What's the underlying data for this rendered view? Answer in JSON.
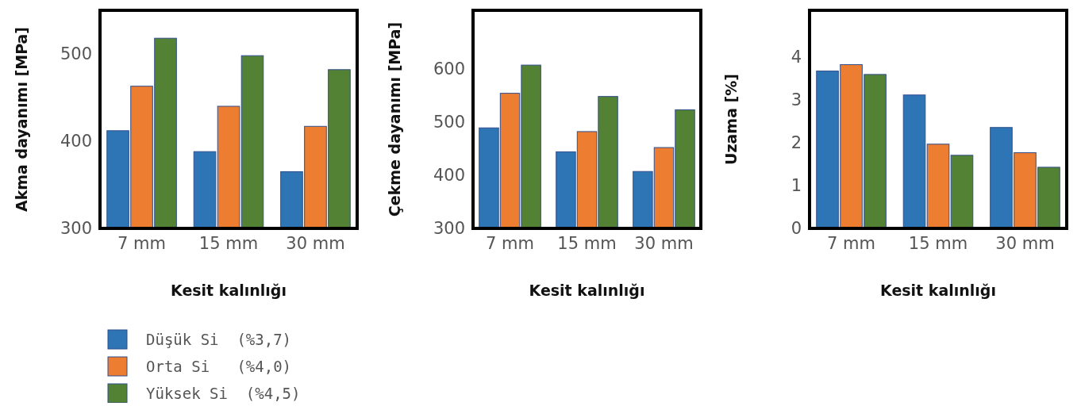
{
  "chart_data": [
    {
      "type": "bar",
      "xlabel": "Kesit kalınlığı",
      "ylabel": "Akma dayanımı [MPa]",
      "categories": [
        "7 mm",
        "15 mm",
        "30 mm"
      ],
      "ylim": [
        300,
        550
      ],
      "yticks": [
        300,
        400,
        500
      ],
      "legend": "bottom",
      "series": [
        {
          "name": "Düşük Si  (%3,7)",
          "color": "#2e75b6",
          "values": [
            412,
            388,
            365
          ]
        },
        {
          "name": "Orta Si   (%4,0)",
          "color": "#ed7d31",
          "values": [
            463,
            440,
            417
          ]
        },
        {
          "name": "Yüksek Si  (%4,5)",
          "color": "#548235",
          "values": [
            518,
            498,
            482
          ]
        }
      ]
    },
    {
      "type": "bar",
      "xlabel": "Kesit kalınlığı",
      "ylabel": "Çekme dayanımı [MPa]",
      "categories": [
        "7 mm",
        "15 mm",
        "30 mm"
      ],
      "ylim": [
        300,
        710
      ],
      "yticks": [
        300,
        400,
        500,
        600
      ],
      "series": [
        {
          "color": "#2e75b6",
          "values": [
            489,
            444,
            407
          ]
        },
        {
          "color": "#ed7d31",
          "values": [
            554,
            482,
            452
          ]
        },
        {
          "color": "#548235",
          "values": [
            607,
            548,
            523
          ]
        }
      ]
    },
    {
      "type": "bar",
      "xlabel": "Kesit kalınlığı",
      "ylabel": "Uzama [%]",
      "categories": [
        "7 mm",
        "15 mm",
        "30 mm"
      ],
      "ylim": [
        0,
        5.1
      ],
      "yticks": [
        0,
        1,
        2,
        3,
        4
      ],
      "series": [
        {
          "color": "#2e75b6",
          "values": [
            3.68,
            3.12,
            2.36
          ]
        },
        {
          "color": "#ed7d31",
          "values": [
            3.83,
            1.97,
            1.77
          ]
        },
        {
          "color": "#548235",
          "values": [
            3.6,
            1.71,
            1.43
          ]
        }
      ]
    }
  ]
}
